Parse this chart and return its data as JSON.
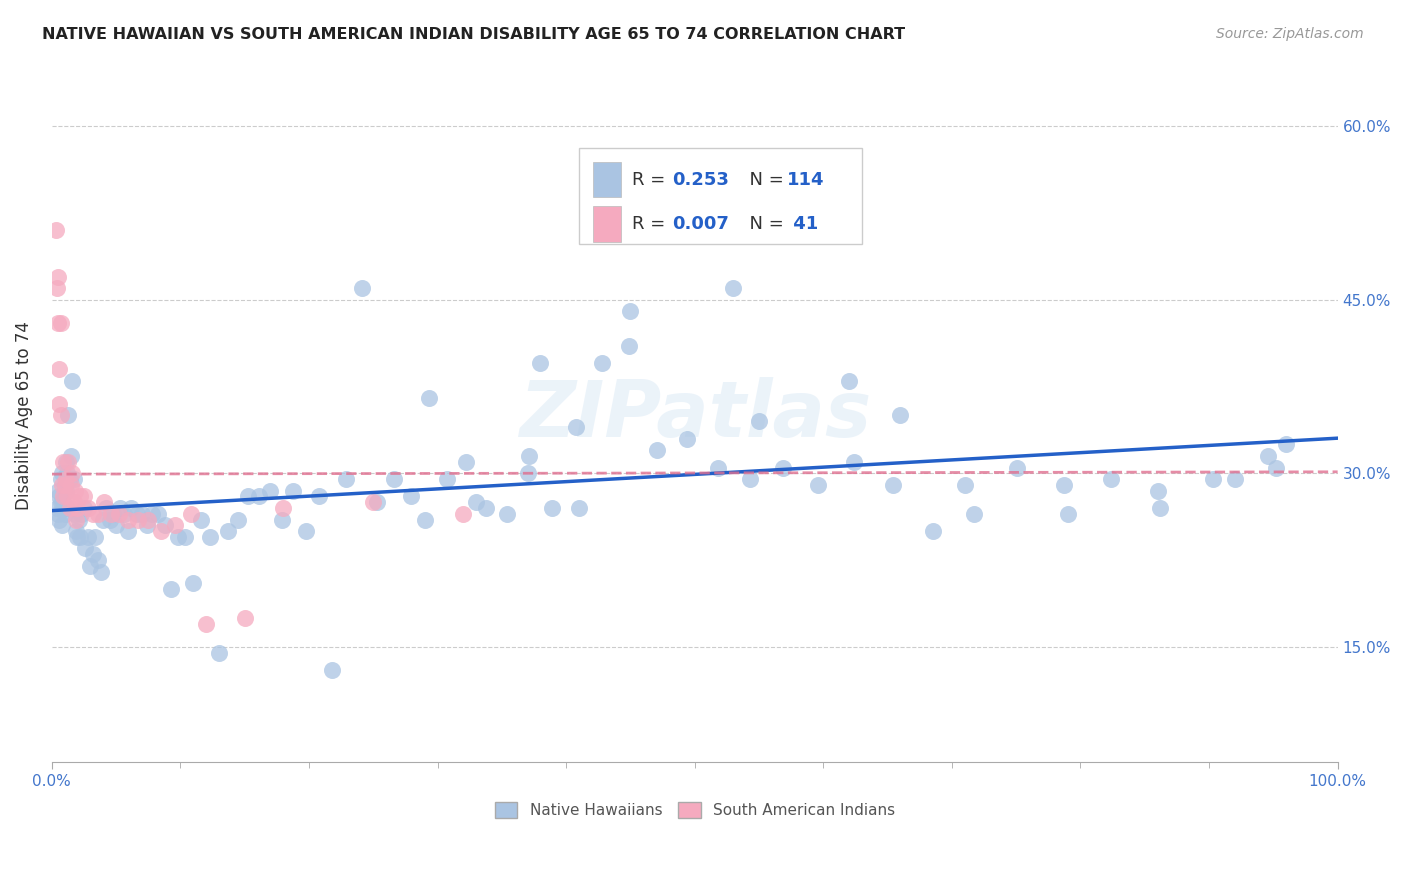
{
  "title": "NATIVE HAWAIIAN VS SOUTH AMERICAN INDIAN DISABILITY AGE 65 TO 74 CORRELATION CHART",
  "source": "Source: ZipAtlas.com",
  "ylabel_label": "Disability Age 65 to 74",
  "blue_color": "#aac4e2",
  "pink_color": "#f5aabf",
  "blue_line_color": "#2460c8",
  "pink_line_color": "#e07090",
  "R_blue": 0.253,
  "N_blue": 114,
  "R_pink": 0.007,
  "N_pink": 41,
  "blue_x": [
    0.004,
    0.005,
    0.005,
    0.006,
    0.006,
    0.007,
    0.007,
    0.008,
    0.008,
    0.009,
    0.01,
    0.01,
    0.011,
    0.011,
    0.012,
    0.012,
    0.013,
    0.014,
    0.015,
    0.016,
    0.017,
    0.018,
    0.019,
    0.02,
    0.021,
    0.022,
    0.023,
    0.025,
    0.026,
    0.028,
    0.03,
    0.032,
    0.034,
    0.036,
    0.038,
    0.04,
    0.042,
    0.045,
    0.048,
    0.05,
    0.053,
    0.056,
    0.059,
    0.062,
    0.066,
    0.07,
    0.074,
    0.078,
    0.083,
    0.088,
    0.093,
    0.098,
    0.104,
    0.11,
    0.116,
    0.123,
    0.13,
    0.137,
    0.145,
    0.153,
    0.161,
    0.17,
    0.179,
    0.188,
    0.198,
    0.208,
    0.218,
    0.229,
    0.241,
    0.253,
    0.266,
    0.279,
    0.293,
    0.307,
    0.322,
    0.338,
    0.354,
    0.371,
    0.389,
    0.408,
    0.428,
    0.449,
    0.471,
    0.494,
    0.518,
    0.543,
    0.569,
    0.596,
    0.624,
    0.654,
    0.685,
    0.717,
    0.751,
    0.787,
    0.824,
    0.862,
    0.903,
    0.946,
    0.952,
    0.96,
    0.45,
    0.38,
    0.53,
    0.62,
    0.71,
    0.79,
    0.86,
    0.92,
    0.55,
    0.66,
    0.29,
    0.33,
    0.37,
    0.41
  ],
  "blue_y": [
    0.27,
    0.265,
    0.285,
    0.28,
    0.26,
    0.275,
    0.295,
    0.255,
    0.3,
    0.275,
    0.29,
    0.265,
    0.31,
    0.285,
    0.3,
    0.27,
    0.35,
    0.295,
    0.315,
    0.38,
    0.295,
    0.265,
    0.25,
    0.245,
    0.26,
    0.245,
    0.265,
    0.27,
    0.235,
    0.245,
    0.22,
    0.23,
    0.245,
    0.225,
    0.215,
    0.26,
    0.27,
    0.26,
    0.265,
    0.255,
    0.27,
    0.265,
    0.25,
    0.27,
    0.265,
    0.265,
    0.255,
    0.265,
    0.265,
    0.255,
    0.2,
    0.245,
    0.245,
    0.205,
    0.26,
    0.245,
    0.145,
    0.25,
    0.26,
    0.28,
    0.28,
    0.285,
    0.26,
    0.285,
    0.25,
    0.28,
    0.13,
    0.295,
    0.46,
    0.275,
    0.295,
    0.28,
    0.365,
    0.295,
    0.31,
    0.27,
    0.265,
    0.315,
    0.27,
    0.34,
    0.395,
    0.41,
    0.32,
    0.33,
    0.305,
    0.295,
    0.305,
    0.29,
    0.31,
    0.29,
    0.25,
    0.265,
    0.305,
    0.29,
    0.295,
    0.27,
    0.295,
    0.315,
    0.305,
    0.325,
    0.44,
    0.395,
    0.46,
    0.38,
    0.29,
    0.265,
    0.285,
    0.295,
    0.345,
    0.35,
    0.26,
    0.275,
    0.3,
    0.27
  ],
  "pink_x": [
    0.003,
    0.004,
    0.005,
    0.005,
    0.006,
    0.006,
    0.007,
    0.007,
    0.008,
    0.009,
    0.009,
    0.01,
    0.011,
    0.012,
    0.013,
    0.014,
    0.015,
    0.016,
    0.017,
    0.018,
    0.019,
    0.02,
    0.022,
    0.025,
    0.028,
    0.032,
    0.036,
    0.041,
    0.046,
    0.052,
    0.059,
    0.067,
    0.075,
    0.085,
    0.096,
    0.108,
    0.12,
    0.15,
    0.18,
    0.25,
    0.32
  ],
  "pink_y": [
    0.51,
    0.46,
    0.47,
    0.43,
    0.36,
    0.39,
    0.43,
    0.35,
    0.29,
    0.31,
    0.28,
    0.29,
    0.295,
    0.28,
    0.31,
    0.27,
    0.29,
    0.3,
    0.275,
    0.285,
    0.26,
    0.27,
    0.28,
    0.28,
    0.27,
    0.265,
    0.265,
    0.275,
    0.265,
    0.265,
    0.26,
    0.26,
    0.26,
    0.25,
    0.255,
    0.265,
    0.17,
    0.175,
    0.27,
    0.275,
    0.265
  ]
}
